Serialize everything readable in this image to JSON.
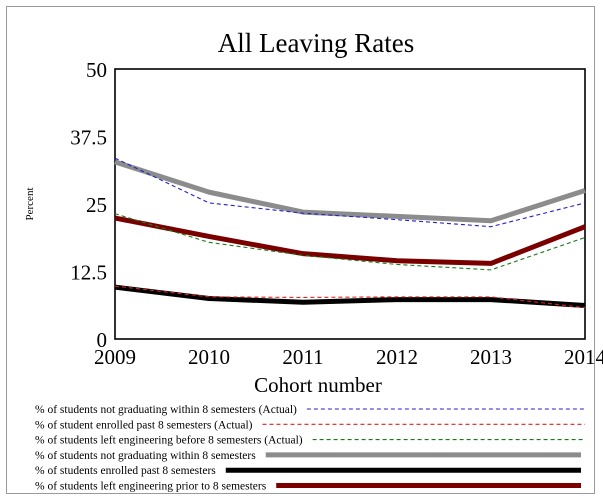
{
  "chart_data": {
    "type": "line",
    "title": "All Leaving Rates",
    "xlabel": "Cohort number",
    "ylabel": "Percent",
    "x": [
      2009,
      2010,
      2011,
      2012,
      2013,
      2014
    ],
    "xticks": [
      "2009",
      "2010",
      "2011",
      "2012",
      "2013",
      "2014"
    ],
    "yticks": [
      "50",
      "37.5",
      "25",
      "12.5",
      "0"
    ],
    "yticks_values": [
      50,
      37.5,
      25,
      12.5,
      0
    ],
    "ylim": [
      0,
      50
    ],
    "xlim": [
      2009,
      2014
    ],
    "grid": false,
    "legend_position": "bottom",
    "series": [
      {
        "name": "% of students not graduating within 8 semesters (Actual)",
        "color": "#2222cc",
        "style": "dashed",
        "values": [
          33.5,
          25.2,
          23.3,
          22.1,
          20.8,
          25.2
        ]
      },
      {
        "name": "% of student enrolled past 8 semesters (Actual)",
        "color": "#dd2222",
        "style": "dashed",
        "values": [
          9.8,
          7.8,
          7.7,
          7.8,
          7.8,
          5.8
        ]
      },
      {
        "name": "% of students left engineering before 8 semesters (Actual)",
        "color": "#1a7a1a",
        "style": "dashed",
        "values": [
          23.2,
          17.9,
          15.5,
          13.8,
          12.8,
          18.8
        ]
      },
      {
        "name": "% of students not graduating within 8 semesters",
        "color": "#8c8c8c",
        "style": "solid-thick",
        "values": [
          32.8,
          27.2,
          23.5,
          22.7,
          21.9,
          27.5
        ]
      },
      {
        "name": "% of students enrolled past 8 semesters",
        "color": "#000000",
        "style": "solid-thick",
        "values": [
          9.6,
          7.5,
          6.8,
          7.3,
          7.3,
          6.2
        ]
      },
      {
        "name": "% of students left engineering prior to 8 semesters",
        "color": "#7a0000",
        "style": "solid-thick",
        "values": [
          22.4,
          19.0,
          15.8,
          14.5,
          14.0,
          20.8
        ]
      }
    ]
  }
}
